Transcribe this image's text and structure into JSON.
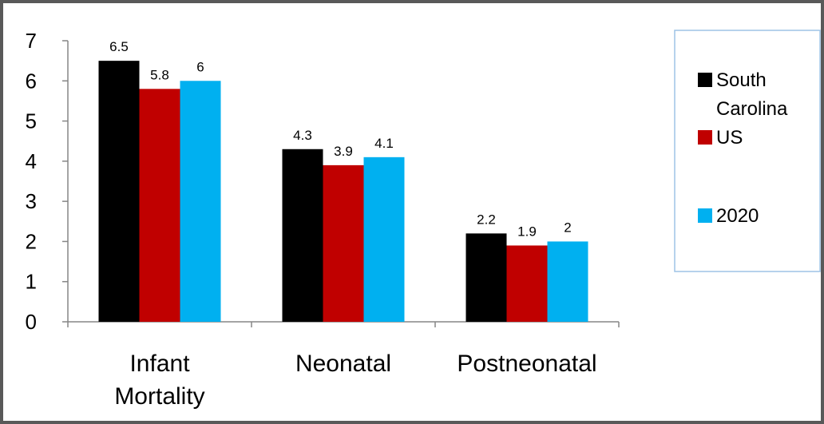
{
  "chart_data": {
    "type": "bar",
    "categories": [
      [
        "Infant",
        "Mortality"
      ],
      [
        "Neonatal"
      ],
      [
        "Postneonatal"
      ]
    ],
    "series": [
      {
        "name": [
          "South",
          "Carolina"
        ],
        "values": [
          6.5,
          4.3,
          2.2
        ],
        "color": "#000000"
      },
      {
        "name": [
          "US"
        ],
        "values": [
          5.8,
          3.9,
          1.9
        ],
        "color": "#C00000"
      },
      {
        "name": [
          "2020"
        ],
        "values": [
          6,
          4.1,
          2
        ],
        "color": "#00B0F0"
      }
    ],
    "data_labels": [
      [
        "6.5",
        "4.3",
        "2.2"
      ],
      [
        "5.8",
        "3.9",
        "1.9"
      ],
      [
        "6",
        "4.1",
        "2"
      ]
    ],
    "y_ticks": [
      "0",
      "1",
      "2",
      "3",
      "4",
      "5",
      "6",
      "7"
    ],
    "ylim": [
      0,
      7
    ],
    "grid": false,
    "legend_position": "right",
    "title": "",
    "xlabel": "",
    "ylabel": ""
  }
}
